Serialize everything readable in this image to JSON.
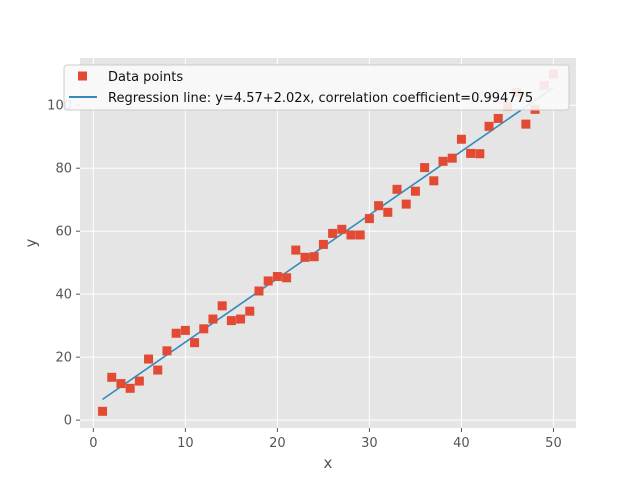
{
  "chart_data": {
    "type": "scatter",
    "title": "",
    "xlabel": "x",
    "ylabel": "y",
    "xlim": [
      -1.45,
      52.45
    ],
    "ylim": [
      -2.5,
      115.0
    ],
    "xticks": [
      0,
      10,
      20,
      30,
      40,
      50
    ],
    "yticks": [
      0,
      20,
      40,
      60,
      80,
      100
    ],
    "grid": true,
    "background": "#e5e5e5",
    "legend_position": "top-left",
    "series": [
      {
        "name": "Data points",
        "kind": "scatter",
        "marker": "square",
        "color": "#e24a33",
        "x": [
          1,
          2,
          3,
          4,
          5,
          6,
          7,
          8,
          9,
          10,
          11,
          12,
          13,
          14,
          15,
          16,
          17,
          18,
          19,
          20,
          21,
          22,
          23,
          24,
          25,
          26,
          27,
          28,
          29,
          30,
          31,
          32,
          33,
          34,
          35,
          36,
          37,
          38,
          39,
          40,
          41,
          42,
          43,
          44,
          45,
          46,
          47,
          48,
          49,
          50
        ],
        "y": [
          2.8,
          13.6,
          11.6,
          10.1,
          12.4,
          19.4,
          15.9,
          22.0,
          27.6,
          28.5,
          24.6,
          29.0,
          32.1,
          36.3,
          31.6,
          32.1,
          34.6,
          41.0,
          44.2,
          45.6,
          45.2,
          54.0,
          51.7,
          51.9,
          55.8,
          59.3,
          60.6,
          58.8,
          58.8,
          64.0,
          68.1,
          66.0,
          73.3,
          68.6,
          72.7,
          80.2,
          76.0,
          82.2,
          83.2,
          89.2,
          84.7,
          84.6,
          93.3,
          95.8,
          99.7,
          104.1,
          94.0,
          98.7,
          106.3,
          109.9
        ]
      },
      {
        "name": "Regression line: y=4.57+2.02x, correlation coefficient=0.994775",
        "kind": "line",
        "color": "#348abd",
        "x": [
          1,
          50
        ],
        "y": [
          6.59,
          105.57
        ]
      }
    ]
  }
}
